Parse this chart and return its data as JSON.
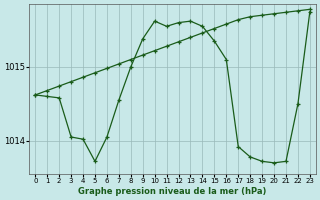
{
  "xlabel": "Graphe pression niveau de la mer (hPa)",
  "background_color": "#c8e8e8",
  "line_color": "#1a5c1a",
  "ylim": [
    1013.55,
    1015.85
  ],
  "xlim": [
    -0.5,
    23.5
  ],
  "yticks": [
    1014,
    1015
  ],
  "xticks": [
    0,
    1,
    2,
    3,
    4,
    5,
    6,
    7,
    8,
    9,
    10,
    11,
    12,
    13,
    14,
    15,
    16,
    17,
    18,
    19,
    20,
    21,
    22,
    23
  ],
  "line1_x": [
    0,
    1,
    2,
    3,
    4,
    5,
    6,
    7,
    8,
    9,
    10,
    11,
    12,
    13,
    14,
    15,
    16,
    17,
    18,
    19,
    20,
    21,
    22,
    23
  ],
  "line1_y": [
    1014.62,
    1014.68,
    1014.74,
    1014.8,
    1014.86,
    1014.92,
    1014.98,
    1015.04,
    1015.1,
    1015.16,
    1015.22,
    1015.28,
    1015.34,
    1015.4,
    1015.46,
    1015.52,
    1015.58,
    1015.64,
    1015.68,
    1015.7,
    1015.72,
    1015.74,
    1015.76,
    1015.78
  ],
  "line2_x": [
    0,
    1,
    2,
    3,
    4,
    5,
    6,
    7,
    8,
    9,
    10,
    11,
    12,
    13,
    14,
    15,
    16,
    17,
    18,
    19,
    20,
    21,
    22,
    23
  ],
  "line2_y": [
    1014.62,
    1014.6,
    1014.58,
    1014.05,
    1014.02,
    1013.72,
    1014.05,
    1014.55,
    1015.0,
    1015.38,
    1015.62,
    1015.55,
    1015.6,
    1015.62,
    1015.55,
    1015.35,
    1015.1,
    1013.92,
    1013.78,
    1013.72,
    1013.7,
    1013.72,
    1014.5,
    1015.75
  ]
}
